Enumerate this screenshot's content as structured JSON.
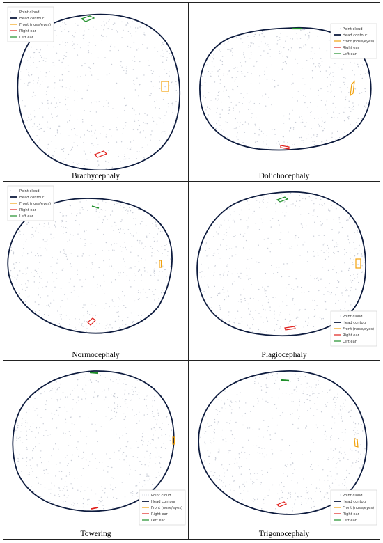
{
  "legend_labels": [
    "Point cloud",
    "Head contour",
    "Front (nose/eyes)",
    "Right ear",
    "Left ear"
  ],
  "colors": {
    "point_cloud": "#c8ccd6",
    "head_contour": "#0d1b3e",
    "front": "#f2a20c",
    "right_ear": "#e0201c",
    "left_ear": "#1f8f2a"
  },
  "panels": [
    {
      "caption": "Brachycephaly",
      "legend": "top-left"
    },
    {
      "caption": "Dolichocephaly",
      "legend": "top-right"
    },
    {
      "caption": "Normocephaly",
      "legend": "top-left"
    },
    {
      "caption": "Plagiocephaly",
      "legend": "bottom-right"
    },
    {
      "caption": "Towering",
      "legend": "bottom-right"
    },
    {
      "caption": "Trigonocephaly",
      "legend": "bottom-right"
    }
  ]
}
